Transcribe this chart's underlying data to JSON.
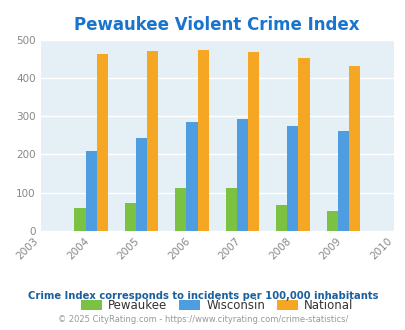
{
  "title": "Pewaukee Violent Crime Index",
  "title_color": "#1874cd",
  "years": [
    2003,
    2004,
    2005,
    2006,
    2007,
    2008,
    2009,
    2010
  ],
  "bar_years": [
    2004,
    2005,
    2006,
    2007,
    2008,
    2009
  ],
  "pewaukee": [
    60,
    73,
    113,
    113,
    68,
    52
  ],
  "wisconsin": [
    210,
    244,
    285,
    293,
    275,
    260
  ],
  "national": [
    463,
    470,
    473,
    467,
    453,
    432
  ],
  "colors": {
    "pewaukee": "#7bc142",
    "wisconsin": "#4d9de0",
    "national": "#f5a623"
  },
  "background_color": "#e4f0f5",
  "ylim": [
    0,
    500
  ],
  "yticks": [
    0,
    100,
    200,
    300,
    400,
    500
  ],
  "legend_labels": [
    "Pewaukee",
    "Wisconsin",
    "National"
  ],
  "footnote1": "Crime Index corresponds to incidents per 100,000 inhabitants",
  "footnote2": "© 2025 CityRating.com - https://www.cityrating.com/crime-statistics/",
  "footnote1_color": "#1a5f9e",
  "footnote2_color": "#999999",
  "bar_width": 0.22,
  "grid_color": "#ffffff",
  "tick_label_color": "#888888"
}
